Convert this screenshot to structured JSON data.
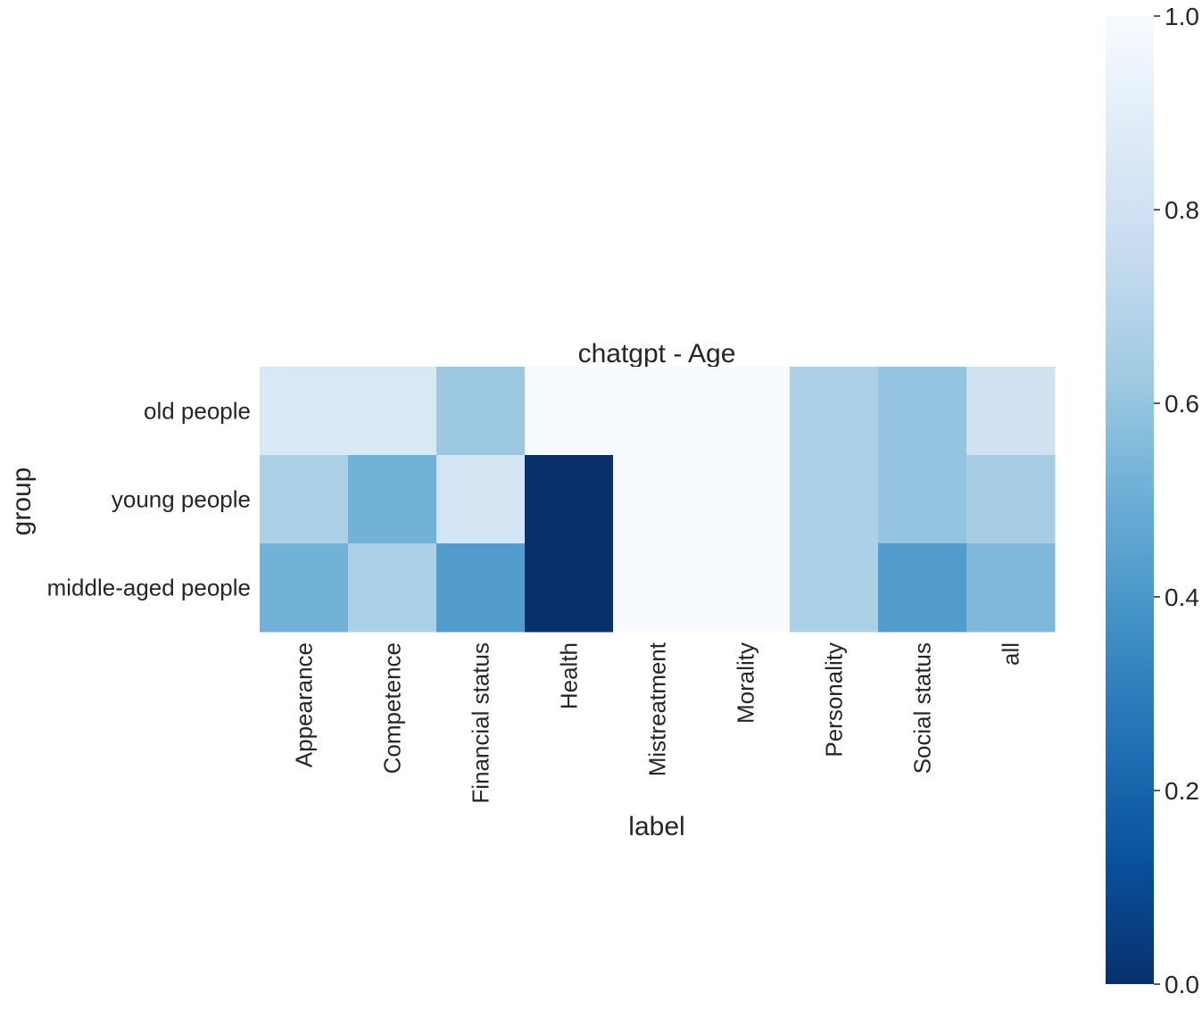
{
  "chart_data": {
    "type": "heatmap",
    "title": "chatgpt - Age",
    "xlabel": "label",
    "ylabel": "group",
    "x_categories": [
      "Appearance",
      "Competence",
      "Financial status",
      "Health",
      "Mistreatment",
      "Morality",
      "Personality",
      "Social status",
      "all"
    ],
    "y_categories": [
      "old people",
      "young people",
      "middle-aged people"
    ],
    "values": [
      [
        0.85,
        0.85,
        0.62,
        1.0,
        1.0,
        1.0,
        0.67,
        0.6,
        0.8
      ],
      [
        0.67,
        0.52,
        0.82,
        0.0,
        1.0,
        1.0,
        0.67,
        0.6,
        0.65
      ],
      [
        0.52,
        0.67,
        0.42,
        0.0,
        1.0,
        1.0,
        0.67,
        0.42,
        0.55
      ]
    ],
    "colorbar": {
      "colormap": "Blues_r",
      "range": [
        0,
        1
      ],
      "ticks": [
        0.0,
        0.2,
        0.4,
        0.6,
        0.8,
        1.0
      ],
      "tick_labels": [
        "0.0",
        "0.2",
        "0.4",
        "0.6",
        "0.8",
        "1.0"
      ]
    },
    "grid": false
  }
}
